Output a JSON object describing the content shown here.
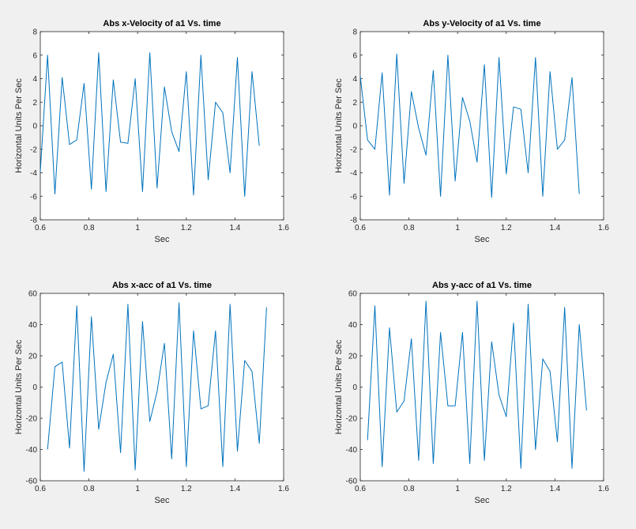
{
  "chart_data": [
    {
      "type": "line",
      "title": "Abs x-Velocity of a1 Vs. time",
      "xlabel": "Sec",
      "ylabel": "Horizontal Units Per Sec",
      "xlim": [
        0.6,
        1.6
      ],
      "ylim": [
        -8,
        8
      ],
      "xticks": [
        "0.6",
        "0.8",
        "1",
        "1.2",
        "1.4",
        "1.6"
      ],
      "yticks": [
        "-8",
        "-6",
        "-4",
        "-2",
        "0",
        "2",
        "4",
        "6",
        "8"
      ],
      "series_color": "#0072bd",
      "x": [
        0.6,
        0.63,
        0.66,
        0.69,
        0.72,
        0.75,
        0.78,
        0.81,
        0.84,
        0.87,
        0.9,
        0.93,
        0.96,
        0.99,
        1.02,
        1.05,
        1.08,
        1.11,
        1.14,
        1.17,
        1.2,
        1.23,
        1.26,
        1.29,
        1.32,
        1.35,
        1.38,
        1.41,
        1.44,
        1.47,
        1.5
      ],
      "y": [
        -3.9,
        6.0,
        -5.8,
        4.1,
        -1.6,
        -1.2,
        3.6,
        -5.4,
        6.2,
        -5.6,
        3.9,
        -1.4,
        -1.5,
        4.0,
        -5.6,
        6.2,
        -5.3,
        3.3,
        -0.5,
        -2.2,
        4.6,
        -5.9,
        6.0,
        -4.6,
        2.0,
        1.1,
        -4.0,
        5.8,
        -6.0,
        4.6,
        -1.7
      ]
    },
    {
      "type": "line",
      "title": "Abs y-Velocity of a1 Vs. time",
      "xlabel": "Sec",
      "ylabel": "Horizontal Units Per Sec",
      "xlim": [
        0.6,
        1.6
      ],
      "ylim": [
        -8,
        8
      ],
      "xticks": [
        "0.6",
        "0.8",
        "1",
        "1.2",
        "1.4",
        "1.6"
      ],
      "yticks": [
        "-8",
        "-6",
        "-4",
        "-2",
        "0",
        "2",
        "4",
        "6",
        "8"
      ],
      "series_color": "#0072bd",
      "x": [
        0.6,
        0.63,
        0.66,
        0.69,
        0.72,
        0.75,
        0.78,
        0.81,
        0.84,
        0.87,
        0.9,
        0.93,
        0.96,
        0.99,
        1.02,
        1.05,
        1.08,
        1.11,
        1.14,
        1.17,
        1.2,
        1.23,
        1.26,
        1.29,
        1.32,
        1.35,
        1.38,
        1.41,
        1.44,
        1.47,
        1.5
      ],
      "y": [
        4.2,
        -1.2,
        -2.0,
        4.5,
        -5.9,
        6.1,
        -4.9,
        2.9,
        -0.2,
        -2.5,
        4.7,
        -6.0,
        6.0,
        -4.7,
        2.4,
        0.4,
        -3.1,
        5.2,
        -6.1,
        5.8,
        -4.1,
        1.6,
        1.4,
        -4.0,
        5.8,
        -6.0,
        4.6,
        -2.0,
        -1.2,
        4.1,
        -5.8
      ]
    },
    {
      "type": "line",
      "title": "Abs x-acc of a1 Vs. time",
      "xlabel": "Sec",
      "ylabel": "Horizontal Units Per Sec",
      "xlim": [
        0.6,
        1.6
      ],
      "ylim": [
        -60,
        60
      ],
      "xticks": [
        "0.6",
        "0.8",
        "1",
        "1.2",
        "1.4",
        "1.6"
      ],
      "yticks": [
        "-60",
        "-40",
        "-20",
        "0",
        "20",
        "40",
        "60"
      ],
      "series_color": "#0072bd",
      "x": [
        0.63,
        0.66,
        0.69,
        0.72,
        0.75,
        0.78,
        0.81,
        0.84,
        0.87,
        0.9,
        0.93,
        0.96,
        0.99,
        1.02,
        1.05,
        1.08,
        1.11,
        1.14,
        1.17,
        1.2,
        1.23,
        1.26,
        1.29,
        1.32,
        1.35,
        1.38,
        1.41,
        1.44,
        1.47,
        1.5,
        1.53
      ],
      "y": [
        -40,
        13,
        16,
        -39,
        52,
        -54,
        45,
        -27,
        3,
        21,
        -42,
        53,
        -53,
        42,
        -22,
        -3,
        28,
        -46,
        54,
        -51,
        36,
        -14,
        -12,
        36,
        -51,
        53,
        -41,
        17,
        10,
        -36,
        51
      ]
    },
    {
      "type": "line",
      "title": "Abs y-acc of a1 Vs. time",
      "xlabel": "Sec",
      "ylabel": "Horizontal Units Per Sec",
      "xlim": [
        0.6,
        1.6
      ],
      "ylim": [
        -60,
        60
      ],
      "xticks": [
        "0.6",
        "0.8",
        "1",
        "1.2",
        "1.4",
        "1.6"
      ],
      "yticks": [
        "-60",
        "-40",
        "-20",
        "0",
        "20",
        "40",
        "60"
      ],
      "series_color": "#0072bd",
      "x": [
        0.63,
        0.66,
        0.69,
        0.72,
        0.75,
        0.78,
        0.81,
        0.84,
        0.87,
        0.9,
        0.93,
        0.96,
        0.99,
        1.02,
        1.05,
        1.08,
        1.11,
        1.14,
        1.17,
        1.2,
        1.23,
        1.26,
        1.29,
        1.32,
        1.35,
        1.38,
        1.41,
        1.44,
        1.47,
        1.5,
        1.53
      ],
      "y": [
        -34,
        52,
        -51,
        38,
        -16,
        -9,
        31,
        -47,
        55,
        -49,
        35,
        -12,
        -12,
        35,
        -49,
        55,
        -47,
        29,
        -5,
        -19,
        41,
        -52,
        53,
        -40,
        18,
        10,
        -35,
        51,
        -52,
        40,
        -15
      ]
    }
  ]
}
